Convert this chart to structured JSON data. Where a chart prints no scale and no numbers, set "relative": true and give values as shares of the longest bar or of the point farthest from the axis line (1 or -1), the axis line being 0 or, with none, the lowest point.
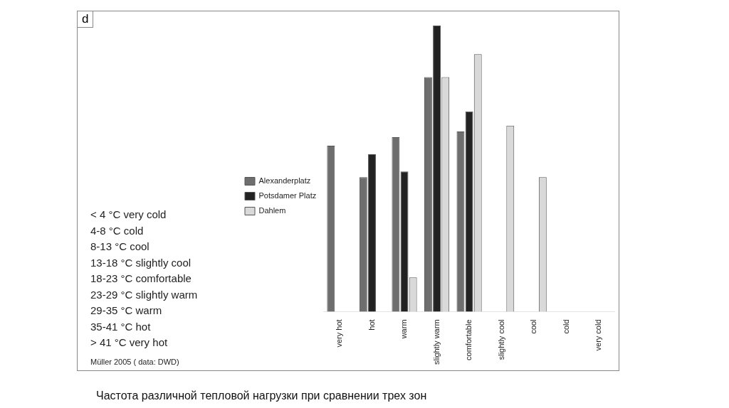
{
  "chart_data": {
    "type": "bar",
    "relative": true,
    "categories": [
      "very hot",
      "hot",
      "warm",
      "slightly warm",
      "comfortable",
      "slightly cool",
      "cool",
      "cold",
      "very cold"
    ],
    "series": [
      {
        "name": "Alexanderplatz",
        "color": "#6e6e6e",
        "values": [
          0.58,
          0.47,
          0.61,
          0.82,
          0.63,
          0,
          0,
          0,
          0
        ]
      },
      {
        "name": "Potsdamer Platz",
        "color": "#222222",
        "values": [
          0,
          0.55,
          0.49,
          1,
          0.7,
          0,
          0,
          0,
          0
        ]
      },
      {
        "name": "Dahlem",
        "color": "#d9d9d9",
        "values": [
          0,
          0,
          0.12,
          0.82,
          0.9,
          0.65,
          0.47,
          0,
          0
        ]
      }
    ],
    "legend": "left",
    "grid": false,
    "annotations": [
      "d",
      "< 4 °C very cold",
      "4-8 °C cold",
      "8-13 °C cool",
      "13-18 °C slightly cool",
      "18-23 °C comfortable",
      "23-29 °C slightly warm",
      "29-35 °C warm",
      "35-41 °C hot",
      "> 41 °C very hot",
      "Müller 2005 ( data: DWD)",
      "Частота различной тепловой нагрузки при сравнении трех зон"
    ]
  }
}
